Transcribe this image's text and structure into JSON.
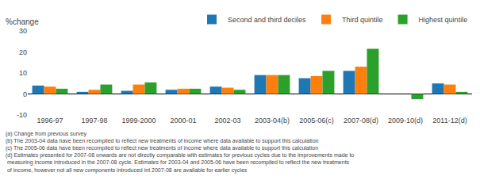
{
  "chart_data": {
    "type": "bar",
    "ylabel": "%change",
    "categories": [
      "1996-97",
      "1997-98",
      "1999-2000",
      "2000-01",
      "2002-03",
      "2003-04(b)",
      "2005-06(c)",
      "2007-08(d)",
      "2009-10(d)",
      "2011-12(d)"
    ],
    "series": [
      {
        "name": "Second and third deciles",
        "values": [
          4.0,
          1.0,
          1.5,
          2.0,
          3.5,
          9.0,
          7.5,
          11.0,
          0.0,
          5.0
        ]
      },
      {
        "name": "Third quintile",
        "values": [
          3.5,
          2.0,
          4.5,
          2.5,
          3.0,
          9.0,
          8.5,
          13.0,
          0.0,
          4.5
        ]
      },
      {
        "name": "Highest quintile",
        "values": [
          2.5,
          4.5,
          5.5,
          2.5,
          2.0,
          9.0,
          11.0,
          21.5,
          -2.5,
          1.0
        ]
      }
    ],
    "ylim": [
      -10,
      30
    ],
    "yticks": [
      -10,
      0,
      10,
      20,
      30
    ],
    "grid": false,
    "legend": "upper right",
    "annotations": [
      "(a) Change from previous survey",
      "(b) The 2003-04 data have been recompiled to reflect new treatments of income where data available to support this calculation",
      "(c) The 2005-06 data have been recompiled to reflect new treatments of income where data available to support this calculation",
      "(d) Estimates presented for 2007-08 onwards are not directly comparable with estimates for previous cycles due to the improvements made to",
      " measuring income introduced in the 2007-08 cycle. Estimates for 2003-04 and 2005-06 have been recompiled to reflect the new treatments",
      " of income, however not all new components introduced int 2007-08 are available for earlier cycles"
    ]
  }
}
